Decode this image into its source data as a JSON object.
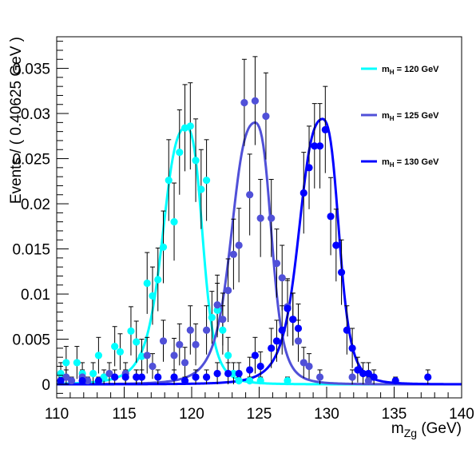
{
  "chart_data": {
    "type": "scatter",
    "xlabel": "m",
    "xlabel_sub": "Zg",
    "xlabel_unit": " (GeV)",
    "ylabel": "Events / ( 0.40625 GeV )",
    "xlim": [
      110,
      140
    ],
    "ylim": [
      -0.0015,
      0.0385
    ],
    "x_ticks": [
      110,
      115,
      120,
      125,
      130,
      135,
      140
    ],
    "x_tick_labels": [
      "110",
      "115",
      "120",
      "125",
      "130",
      "135",
      "140"
    ],
    "y_ticks": [
      0,
      0.005,
      0.01,
      0.015,
      0.02,
      0.025,
      0.03,
      0.035
    ],
    "y_tick_labels": [
      "0",
      "0.005",
      "0.01",
      "0.015",
      "0.02",
      "0.025",
      "0.03",
      "0.035"
    ],
    "grid": false,
    "legend_position": "top-right",
    "series": [
      {
        "name": "m",
        "legend_sub": "H",
        "legend_value": " = 120 GeV",
        "color": "#00ffff",
        "peak": 119.6,
        "fit_amplitude": 0.0285,
        "points": [
          {
            "x": 110.3,
            "y": 0.0012,
            "err": 0.0012
          },
          {
            "x": 110.7,
            "y": 0.0024,
            "err": 0.0018
          },
          {
            "x": 111.5,
            "y": 0.0024,
            "err": 0.0018
          },
          {
            "x": 111.9,
            "y": 0.0012,
            "err": 0.0012
          },
          {
            "x": 112.7,
            "y": 0.0012,
            "err": 0.0012
          },
          {
            "x": 113.1,
            "y": 0.0032,
            "err": 0.002
          },
          {
            "x": 113.5,
            "y": 0.0008,
            "err": 0.0008
          },
          {
            "x": 114.3,
            "y": 0.0042,
            "err": 0.0022
          },
          {
            "x": 114.7,
            "y": 0.0036,
            "err": 0.002
          },
          {
            "x": 115.5,
            "y": 0.0059,
            "err": 0.0027
          },
          {
            "x": 115.9,
            "y": 0.0047,
            "err": 0.0023
          },
          {
            "x": 116.3,
            "y": 0.0031,
            "err": 0.0019
          },
          {
            "x": 116.7,
            "y": 0.0112,
            "err": 0.0034
          },
          {
            "x": 117.1,
            "y": 0.0098,
            "err": 0.0032
          },
          {
            "x": 117.5,
            "y": 0.0116,
            "err": 0.0035
          },
          {
            "x": 117.9,
            "y": 0.0152,
            "err": 0.004
          },
          {
            "x": 118.3,
            "y": 0.0226,
            "err": 0.0045
          },
          {
            "x": 118.7,
            "y": 0.018,
            "err": 0.0043
          },
          {
            "x": 119.1,
            "y": 0.0257,
            "err": 0.0047
          },
          {
            "x": 119.5,
            "y": 0.0284,
            "err": 0.0048
          },
          {
            "x": 119.9,
            "y": 0.0286,
            "err": 0.0048
          },
          {
            "x": 120.3,
            "y": 0.0248,
            "err": 0.0046
          },
          {
            "x": 120.7,
            "y": 0.0216,
            "err": 0.0044
          },
          {
            "x": 121.1,
            "y": 0.0226,
            "err": 0.0045
          },
          {
            "x": 121.5,
            "y": 0.0074,
            "err": 0.0029
          },
          {
            "x": 121.9,
            "y": 0.0082,
            "err": 0.003
          },
          {
            "x": 122.3,
            "y": 0.006,
            "err": 0.0027
          },
          {
            "x": 122.7,
            "y": 0.0032,
            "err": 0.002
          },
          {
            "x": 123.1,
            "y": 0.0012,
            "err": 0.0012
          },
          {
            "x": 123.5,
            "y": 0.0004,
            "err": 0.0004
          },
          {
            "x": 124.3,
            "y": 0.0004,
            "err": 0.0004
          },
          {
            "x": 125.1,
            "y": 0.0004,
            "err": 0.0004
          },
          {
            "x": 127.1,
            "y": 0.0004,
            "err": 0.0004
          }
        ]
      },
      {
        "name": "m",
        "legend_sub": "H",
        "legend_value": " = 125 GeV",
        "color": "#5050d8",
        "peak": 124.7,
        "fit_amplitude": 0.029,
        "points": [
          {
            "x": 110.7,
            "y": 0.0008,
            "err": 0.0008
          },
          {
            "x": 111.1,
            "y": 0.0004,
            "err": 0.0004
          },
          {
            "x": 111.9,
            "y": 0.0008,
            "err": 0.0008
          },
          {
            "x": 112.3,
            "y": 0.0004,
            "err": 0.0004
          },
          {
            "x": 113.9,
            "y": 0.0012,
            "err": 0.0012
          },
          {
            "x": 115.1,
            "y": 0.0012,
            "err": 0.0012
          },
          {
            "x": 115.9,
            "y": 0.0008,
            "err": 0.0008
          },
          {
            "x": 116.7,
            "y": 0.0032,
            "err": 0.002
          },
          {
            "x": 117.1,
            "y": 0.002,
            "err": 0.0014
          },
          {
            "x": 117.9,
            "y": 0.0048,
            "err": 0.0023
          },
          {
            "x": 118.7,
            "y": 0.0032,
            "err": 0.0019
          },
          {
            "x": 119.1,
            "y": 0.0044,
            "err": 0.0023
          },
          {
            "x": 119.5,
            "y": 0.0024,
            "err": 0.0017
          },
          {
            "x": 119.9,
            "y": 0.006,
            "err": 0.0027
          },
          {
            "x": 120.3,
            "y": 0.0044,
            "err": 0.0023
          },
          {
            "x": 121.1,
            "y": 0.006,
            "err": 0.0027
          },
          {
            "x": 121.9,
            "y": 0.0088,
            "err": 0.0033
          },
          {
            "x": 122.3,
            "y": 0.0072,
            "err": 0.0029
          },
          {
            "x": 122.7,
            "y": 0.0104,
            "err": 0.0035
          },
          {
            "x": 123.1,
            "y": 0.0144,
            "err": 0.0039
          },
          {
            "x": 123.5,
            "y": 0.0154,
            "err": 0.0041
          },
          {
            "x": 123.9,
            "y": 0.0312,
            "err": 0.0048
          },
          {
            "x": 124.3,
            "y": 0.021,
            "err": 0.0045
          },
          {
            "x": 124.7,
            "y": 0.0314,
            "err": 0.0049
          },
          {
            "x": 125.1,
            "y": 0.0184,
            "err": 0.0043
          },
          {
            "x": 125.5,
            "y": 0.0297,
            "err": 0.0048
          },
          {
            "x": 125.9,
            "y": 0.0184,
            "err": 0.0043
          },
          {
            "x": 126.3,
            "y": 0.0134,
            "err": 0.0038
          },
          {
            "x": 126.7,
            "y": 0.0118,
            "err": 0.0036
          },
          {
            "x": 127.1,
            "y": 0.0086,
            "err": 0.0031
          },
          {
            "x": 127.5,
            "y": 0.0072,
            "err": 0.0029
          },
          {
            "x": 127.9,
            "y": 0.0048,
            "err": 0.0023
          },
          {
            "x": 128.3,
            "y": 0.0024,
            "err": 0.0017
          },
          {
            "x": 128.7,
            "y": 0.002,
            "err": 0.0014
          },
          {
            "x": 129.5,
            "y": 0.0008,
            "err": 0.0008
          },
          {
            "x": 131.9,
            "y": 0.0008,
            "err": 0.0008
          },
          {
            "x": 133.1,
            "y": 0.0004,
            "err": 0.0004
          }
        ]
      },
      {
        "name": "m",
        "legend_sub": "H",
        "legend_value": " = 130 GeV",
        "color": "#0000ff",
        "peak": 129.7,
        "fit_amplitude": 0.0294,
        "points": [
          {
            "x": 110.3,
            "y": 0.0004,
            "err": 0.0004
          },
          {
            "x": 111.9,
            "y": 0.0004,
            "err": 0.0004
          },
          {
            "x": 113.1,
            "y": 0.0004,
            "err": 0.0004
          },
          {
            "x": 114.3,
            "y": 0.0008,
            "err": 0.0008
          },
          {
            "x": 115.1,
            "y": 0.0008,
            "err": 0.0008
          },
          {
            "x": 115.9,
            "y": 0.0008,
            "err": 0.0008
          },
          {
            "x": 116.3,
            "y": 0.0008,
            "err": 0.0008
          },
          {
            "x": 117.5,
            "y": 0.0008,
            "err": 0.0008
          },
          {
            "x": 118.7,
            "y": 0.0008,
            "err": 0.0008
          },
          {
            "x": 119.5,
            "y": 0.0004,
            "err": 0.0004
          },
          {
            "x": 120.3,
            "y": 0.0008,
            "err": 0.0008
          },
          {
            "x": 121.1,
            "y": 0.0008,
            "err": 0.0008
          },
          {
            "x": 121.9,
            "y": 0.0012,
            "err": 0.0012
          },
          {
            "x": 122.7,
            "y": 0.0012,
            "err": 0.0012
          },
          {
            "x": 123.5,
            "y": 0.0012,
            "err": 0.0012
          },
          {
            "x": 124.3,
            "y": 0.0016,
            "err": 0.0014
          },
          {
            "x": 124.7,
            "y": 0.0032,
            "err": 0.002
          },
          {
            "x": 125.1,
            "y": 0.002,
            "err": 0.0016
          },
          {
            "x": 125.9,
            "y": 0.004,
            "err": 0.0022
          },
          {
            "x": 126.3,
            "y": 0.0048,
            "err": 0.0023
          },
          {
            "x": 126.7,
            "y": 0.006,
            "err": 0.0027
          },
          {
            "x": 127.1,
            "y": 0.0084,
            "err": 0.0031
          },
          {
            "x": 127.5,
            "y": 0.0072,
            "err": 0.0029
          },
          {
            "x": 127.9,
            "y": 0.0062,
            "err": 0.0027
          },
          {
            "x": 128.3,
            "y": 0.0212,
            "err": 0.0045
          },
          {
            "x": 128.7,
            "y": 0.024,
            "err": 0.0046
          },
          {
            "x": 129.1,
            "y": 0.0264,
            "err": 0.0047
          },
          {
            "x": 129.5,
            "y": 0.0264,
            "err": 0.0047
          },
          {
            "x": 129.9,
            "y": 0.0282,
            "err": 0.0048
          },
          {
            "x": 130.3,
            "y": 0.0186,
            "err": 0.0043
          },
          {
            "x": 130.7,
            "y": 0.0154,
            "err": 0.004
          },
          {
            "x": 131.1,
            "y": 0.0124,
            "err": 0.0036
          },
          {
            "x": 131.5,
            "y": 0.006,
            "err": 0.0027
          },
          {
            "x": 131.9,
            "y": 0.004,
            "err": 0.0022
          },
          {
            "x": 132.3,
            "y": 0.0016,
            "err": 0.0014
          },
          {
            "x": 132.7,
            "y": 0.0012,
            "err": 0.0012
          },
          {
            "x": 133.1,
            "y": 0.0012,
            "err": 0.0012
          },
          {
            "x": 133.5,
            "y": 0.0008,
            "err": 0.0008
          },
          {
            "x": 135.1,
            "y": 0.0004,
            "err": 0.0004
          },
          {
            "x": 137.5,
            "y": 0.0008,
            "err": 0.0008
          }
        ]
      }
    ]
  }
}
